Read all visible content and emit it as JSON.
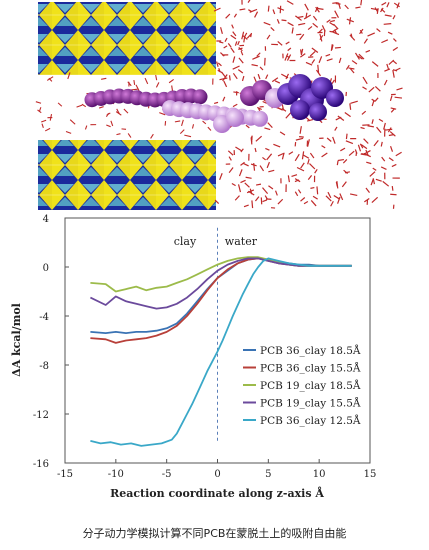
{
  "caption": "分子动力学模拟计算不同PCB在蒙脱土上的吸附自由能",
  "colors": {
    "clay_blue": "#1b2a9c",
    "clay_yellow": "#f0e21a",
    "clay_cyan": "#6fc7d8",
    "water_red": "#c02a2a",
    "molecule_dark": "#4a0aa6",
    "molecule_purple": "#8a2b9e",
    "molecule_pink": "#d9a2e8"
  },
  "chart_data": {
    "type": "line",
    "xlabel": "Reaction coordinate along z-axis Å",
    "ylabel": "ΔA kcal/mol",
    "xlim": [
      -15,
      15
    ],
    "ylim": [
      -16,
      4
    ],
    "xticks": [
      -15,
      -10,
      -5,
      0,
      5,
      10,
      15
    ],
    "yticks": [
      -16,
      -12,
      -8,
      -4,
      0,
      4
    ],
    "grid": false,
    "legend": "bottom-right",
    "annotations": [
      {
        "text": "clay",
        "x": -3.2,
        "y": 1.8
      },
      {
        "text": "water",
        "x": 2.3,
        "y": 1.8
      }
    ],
    "divider_x": 0,
    "series": [
      {
        "name": "PCB 36_clay 18.5Å",
        "color": "#3a73b4",
        "x": [
          -12.5,
          -11,
          -10,
          -9,
          -8,
          -7,
          -6,
          -5,
          -4,
          -3,
          -2,
          -1,
          0,
          1,
          2,
          3,
          4,
          5,
          6,
          7,
          8,
          9,
          10,
          11,
          12,
          13.2
        ],
        "y": [
          -5.3,
          -5.4,
          -5.3,
          -5.4,
          -5.3,
          -5.3,
          -5.2,
          -5.0,
          -4.6,
          -3.8,
          -2.8,
          -1.8,
          -0.9,
          -0.3,
          0.3,
          0.6,
          0.7,
          0.6,
          0.4,
          0.3,
          0.2,
          0.2,
          0.1,
          0.1,
          0.1,
          0.1
        ]
      },
      {
        "name": "PCB 36_clay 15.5Å",
        "color": "#b8403a",
        "x": [
          -12.5,
          -11,
          -10,
          -9,
          -8,
          -7,
          -6,
          -5,
          -4,
          -3,
          -2,
          -1,
          0,
          1,
          2,
          3,
          4,
          5,
          6,
          7,
          8,
          9,
          10,
          11,
          12,
          13.2
        ],
        "y": [
          -5.8,
          -5.9,
          -6.2,
          -6.0,
          -5.9,
          -5.8,
          -5.6,
          -5.3,
          -4.8,
          -4.0,
          -3.0,
          -1.9,
          -0.9,
          -0.2,
          0.3,
          0.6,
          0.7,
          0.5,
          0.3,
          0.2,
          0.1,
          0.1,
          0.1,
          0.1,
          0.1,
          0.1
        ]
      },
      {
        "name": "PCB 19_clay 18.5Å",
        "color": "#9cbb4a",
        "x": [
          -12.5,
          -11,
          -10,
          -9,
          -8,
          -7,
          -6,
          -5,
          -4,
          -3,
          -2,
          -1,
          0,
          1,
          2,
          3,
          4,
          5,
          6,
          7,
          8,
          9,
          10,
          11,
          12,
          13.2
        ],
        "y": [
          -1.3,
          -1.4,
          -2.0,
          -1.8,
          -1.6,
          -1.9,
          -1.7,
          -1.6,
          -1.3,
          -1.0,
          -0.6,
          -0.2,
          0.2,
          0.5,
          0.7,
          0.8,
          0.8,
          0.6,
          0.4,
          0.2,
          0.1,
          0.1,
          0.1,
          0.1,
          0.1,
          0.1
        ]
      },
      {
        "name": "PCB 19_clay 15.5Å",
        "color": "#6b4a9c",
        "x": [
          -12.5,
          -11,
          -10,
          -9,
          -8,
          -7,
          -6,
          -5,
          -4,
          -3,
          -2,
          -1,
          0,
          1,
          2,
          3,
          4,
          5,
          6,
          7,
          8,
          9,
          10,
          11,
          12,
          13.2
        ],
        "y": [
          -2.5,
          -3.1,
          -2.4,
          -2.8,
          -3.0,
          -3.2,
          -3.4,
          -3.3,
          -3.0,
          -2.5,
          -1.8,
          -1.0,
          -0.3,
          0.2,
          0.5,
          0.7,
          0.7,
          0.5,
          0.3,
          0.2,
          0.1,
          0.1,
          0.1,
          0.1,
          0.1,
          0.1
        ]
      },
      {
        "name": "PCB 36_clay 12.5Å",
        "color": "#3aa8c8",
        "x": [
          -12.5,
          -11.5,
          -10.5,
          -9.5,
          -8.5,
          -7.5,
          -6.5,
          -5.5,
          -4.5,
          -4.0,
          -3.5,
          -3.0,
          -2.5,
          -2.0,
          -1.5,
          -1.0,
          -0.5,
          0,
          0.5,
          1.0,
          1.5,
          2.0,
          2.5,
          3.0,
          3.5,
          4.0,
          4.5,
          5,
          6,
          7,
          8,
          9,
          10,
          11,
          12,
          13.2
        ],
        "y": [
          -14.2,
          -14.4,
          -14.3,
          -14.5,
          -14.4,
          -14.6,
          -14.5,
          -14.4,
          -14.1,
          -13.6,
          -12.8,
          -12.0,
          -11.2,
          -10.3,
          -9.4,
          -8.5,
          -7.7,
          -6.9,
          -6.0,
          -5.0,
          -4.0,
          -3.1,
          -2.2,
          -1.4,
          -0.6,
          0.0,
          0.5,
          0.7,
          0.5,
          0.3,
          0.2,
          0.1,
          0.1,
          0.1,
          0.1,
          0.1
        ]
      }
    ]
  }
}
